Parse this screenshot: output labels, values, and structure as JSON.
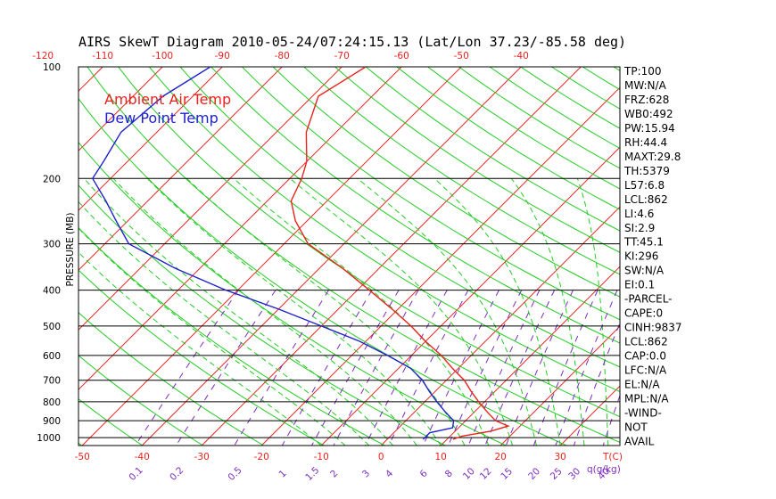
{
  "chart_data": {
    "type": "line",
    "title": "AIRS SkewT Diagram 2010-05-24/07:24:15.13 (Lat/Lon 37.23/-85.58 deg)",
    "ylabel": "PRESSURE (MB)",
    "xlabel": "T(C)",
    "mixing_ratio_label": "q(g/kg)",
    "y_scale": "log",
    "ylim": [
      1050,
      100
    ],
    "pressure_ticks": [
      "100",
      "200",
      "300",
      "400",
      "500",
      "600",
      "700",
      "800",
      "900",
      "1000"
    ],
    "top_temp_ticks": [
      "-120",
      "-110",
      "-100",
      "-90",
      "-80",
      "-70",
      "-60",
      "-50",
      "-40"
    ],
    "bottom_temp_ticks": [
      "-50",
      "-40",
      "-30",
      "-20",
      "-10",
      "0",
      "10",
      "20",
      "30"
    ],
    "mixing_ratio_ticks": [
      "0.1",
      "0.2",
      "0.5",
      "1",
      "1.5",
      "2",
      "3",
      "4",
      "6",
      "8",
      "10",
      "12",
      "15",
      "20",
      "25",
      "30",
      "40"
    ],
    "legend": [
      {
        "label": "Ambient Air Temp",
        "color": "#e8231e"
      },
      {
        "label": "Dew Point Temp",
        "color": "#1f22cc"
      }
    ],
    "series": [
      {
        "name": "Ambient Air Temp",
        "color": "#e8231e",
        "points": [
          [
            100,
            -66
          ],
          [
            120,
            -69
          ],
          [
            150,
            -65
          ],
          [
            180,
            -60
          ],
          [
            200,
            -58
          ],
          [
            230,
            -56
          ],
          [
            260,
            -52
          ],
          [
            300,
            -46
          ],
          [
            350,
            -36
          ],
          [
            400,
            -28
          ],
          [
            450,
            -21
          ],
          [
            500,
            -15
          ],
          [
            550,
            -10
          ],
          [
            600,
            -5
          ],
          [
            650,
            -1
          ],
          [
            700,
            3
          ],
          [
            750,
            6
          ],
          [
            800,
            9
          ],
          [
            850,
            12
          ],
          [
            900,
            15
          ],
          [
            930,
            18
          ],
          [
            960,
            16
          ],
          [
            990,
            12
          ],
          [
            1010,
            11
          ]
        ]
      },
      {
        "name": "Dew Point Temp",
        "color": "#1f22cc",
        "points": [
          [
            100,
            -92
          ],
          [
            120,
            -95
          ],
          [
            150,
            -96
          ],
          [
            180,
            -94
          ],
          [
            200,
            -93
          ],
          [
            230,
            -87
          ],
          [
            260,
            -82
          ],
          [
            300,
            -76
          ],
          [
            350,
            -64
          ],
          [
            400,
            -52
          ],
          [
            450,
            -40
          ],
          [
            500,
            -30
          ],
          [
            550,
            -21
          ],
          [
            600,
            -14
          ],
          [
            650,
            -8
          ],
          [
            700,
            -4
          ],
          [
            750,
            -1
          ],
          [
            800,
            2
          ],
          [
            850,
            5
          ],
          [
            900,
            8
          ],
          [
            940,
            9
          ],
          [
            970,
            6
          ],
          [
            1000,
            6
          ],
          [
            1010,
            6
          ]
        ]
      }
    ],
    "indices": [
      "TP:100",
      "MW:N/A",
      "FRZ:628",
      "WB0:492",
      "PW:15.94",
      "RH:44.4",
      "MAXT:29.8",
      "TH:5379",
      "L57:6.8",
      "LCL:862",
      "LI:4.6",
      "SI:2.9",
      "TT:45.1",
      "KI:296",
      "SW:N/A",
      "EI:0.1",
      "-PARCEL-",
      "CAPE:0",
      "CINH:9837",
      "LCL:862",
      "CAP:0.0",
      "LFC:N/A",
      "EL:N/A",
      "MPL:N/A",
      "-WIND-",
      "NOT",
      "AVAIL"
    ],
    "colors": {
      "isotherm": "#e8231e",
      "dry_adiabat": "#22cc22",
      "moist_adiabat": "#22cc22",
      "mixing_ratio": "#7d2dbf",
      "axis_text": "#e8231e"
    }
  }
}
